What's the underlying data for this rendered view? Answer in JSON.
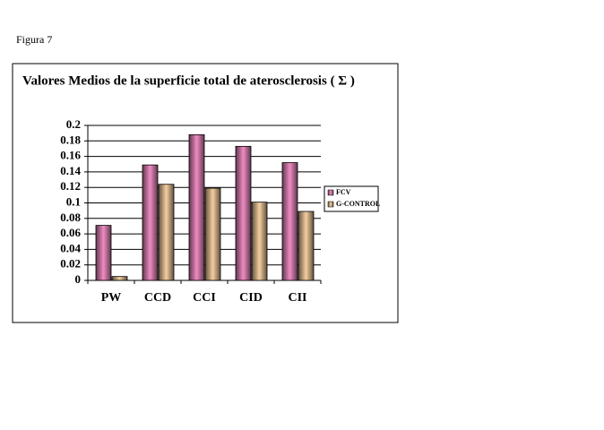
{
  "figure_label": "Figura 7",
  "chart_data": {
    "type": "bar",
    "title": "Valores Medios de la superficie total de aterosclerosis ( Σ )",
    "categories": [
      "PW",
      "CCD",
      "CCI",
      "CID",
      "CII"
    ],
    "series": [
      {
        "name": "FCV",
        "color": "#f08cc4",
        "values": [
          0.071,
          0.149,
          0.188,
          0.173,
          0.152
        ]
      },
      {
        "name": "G-CONTROL",
        "color": "#f6cfa0",
        "values": [
          0.005,
          0.124,
          0.119,
          0.101,
          0.089
        ]
      }
    ],
    "ylim": [
      0,
      0.2
    ],
    "yticks": [
      0,
      0.02,
      0.04,
      0.06,
      0.08,
      0.1,
      0.12,
      0.14,
      0.16,
      0.18,
      0.2
    ],
    "grid": true,
    "legend": "right"
  }
}
